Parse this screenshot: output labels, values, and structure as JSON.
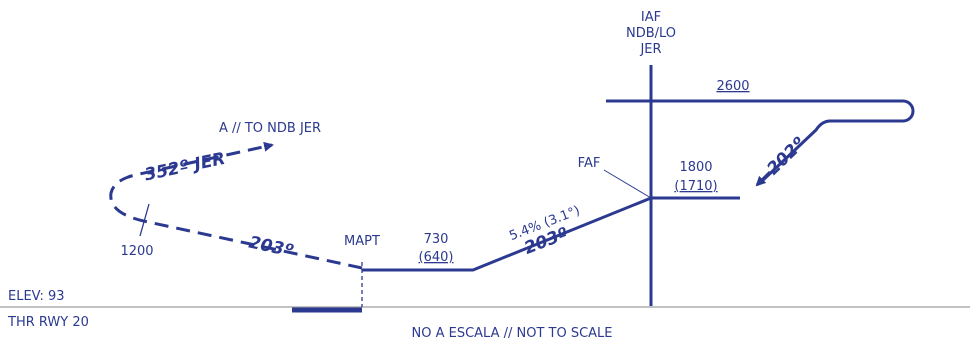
{
  "colors": {
    "route": "#2b3990",
    "ground": "#9e9e9e",
    "text": "#2b3990"
  },
  "fix": {
    "iaf_line1": "IAF",
    "iaf_line2": "NDB/LO",
    "iaf_line3": "JER",
    "faf": "FAF",
    "mapt": "MAPT"
  },
  "altitudes": {
    "holding": "2600",
    "faf_alt": "1800",
    "faf_alt_msl": "(1710)",
    "mapt_alt": "730",
    "mapt_alt_msl": "(640)",
    "missed_climb": "1200"
  },
  "courses": {
    "inbound_hold": "202º",
    "final": "203º",
    "missed": "203º",
    "missed_turn": "352º JER",
    "gradient": "5.4% (3.1°)"
  },
  "missed_note": "A // TO NDB JER",
  "elev": "ELEV: 93",
  "thr": "THR RWY 20",
  "scale_note": "NO A ESCALA // NOT TO SCALE"
}
